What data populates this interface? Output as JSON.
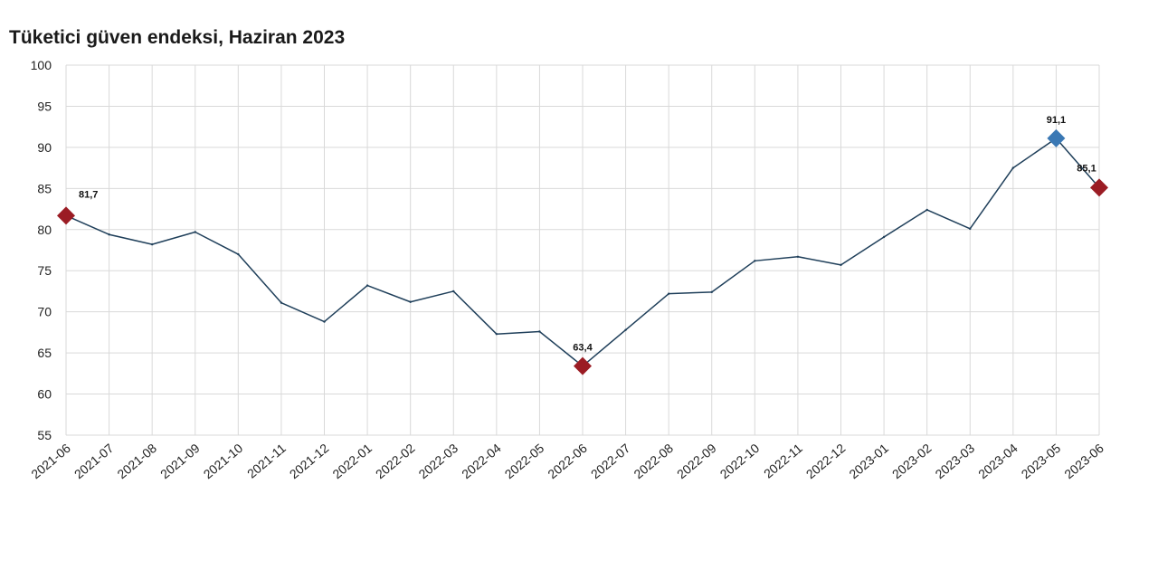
{
  "chart_data": {
    "type": "line",
    "title": "Tüketici güven endeksi, Haziran 2023",
    "xlabel": "",
    "ylabel": "",
    "ylim": [
      55,
      100
    ],
    "yticks": [
      55,
      60,
      65,
      70,
      75,
      80,
      85,
      90,
      95,
      100
    ],
    "grid": true,
    "categories": [
      "2021-06",
      "2021-07",
      "2021-08",
      "2021-09",
      "2021-10",
      "2021-11",
      "2021-12",
      "2022-01",
      "2022-02",
      "2022-03",
      "2022-04",
      "2022-05",
      "2022-06",
      "2022-07",
      "2022-08",
      "2022-09",
      "2022-10",
      "2022-11",
      "2022-12",
      "2023-01",
      "2023-02",
      "2023-03",
      "2023-04",
      "2023-05",
      "2023-06"
    ],
    "series": [
      {
        "values": [
          81.7,
          79.4,
          78.2,
          79.7,
          77.0,
          71.1,
          68.8,
          73.2,
          71.2,
          72.5,
          67.3,
          67.6,
          63.4,
          67.8,
          72.2,
          72.4,
          76.2,
          76.7,
          75.7,
          79.1,
          82.4,
          80.1,
          87.5,
          91.1,
          85.1
        ],
        "color": "#1f3f5a"
      }
    ],
    "highlights": [
      {
        "index": 0,
        "label": "81,7",
        "color": "#9b1c24"
      },
      {
        "index": 12,
        "label": "63,4",
        "color": "#9b1c24"
      },
      {
        "index": 23,
        "label": "91,1",
        "color": "#3a78b4"
      },
      {
        "index": 24,
        "label": "85,1",
        "color": "#9b1c24"
      }
    ]
  }
}
